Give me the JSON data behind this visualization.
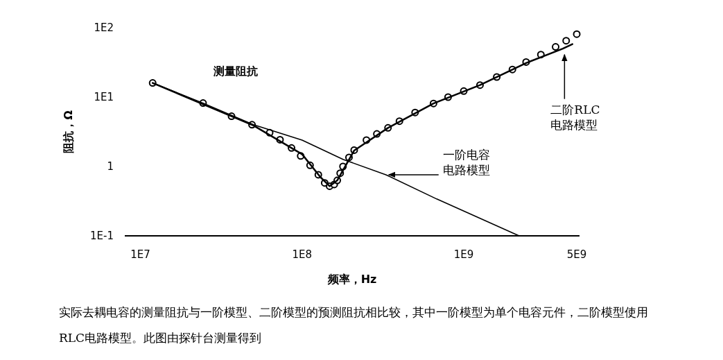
{
  "chart_data": {
    "type": "line",
    "xlabel": "频率，Hz",
    "ylabel": "阻抗，Ω",
    "log": "xy",
    "grid": false,
    "xlim": [
      8000000,
      5200000000
    ],
    "ylim": [
      0.1,
      100
    ],
    "xticks": [
      {
        "value": 10000000,
        "label": "1E7"
      },
      {
        "value": 100000000,
        "label": "1E8"
      },
      {
        "value": 1000000000,
        "label": "1E9"
      },
      {
        "value": 5000000000,
        "label": "5E9"
      }
    ],
    "yticks": [
      {
        "value": 0.1,
        "label": "1E-1"
      },
      1,
      {
        "value": 10,
        "label": "1E1"
      },
      {
        "value": 100,
        "label": "1E2"
      }
    ],
    "series": [
      {
        "type": "scatter",
        "marker": "circle",
        "color": "#000000",
        "x": [
          11900000,
          24400000,
          36600000,
          49000000,
          63000000,
          73000000,
          86000000,
          98000000,
          112000000,
          126000000,
          138000000,
          148000000,
          158000000,
          165000000,
          172000000,
          179000000,
          195000000,
          210000000,
          250000000,
          290000000,
          340000000,
          400000000,
          500000000,
          650000000,
          800000000,
          1000000000,
          1260000000,
          1600000000,
          2000000000,
          2430000000,
          3000000000,
          3700000000,
          4300000000,
          5000000000
        ],
        "values": [
          16,
          8.2,
          5.3,
          4.0,
          3.07,
          2.43,
          1.85,
          1.42,
          1.04,
          0.76,
          0.58,
          0.52,
          0.55,
          0.63,
          0.8,
          1.0,
          1.35,
          1.72,
          2.4,
          2.95,
          3.6,
          4.5,
          6.0,
          8.1,
          10,
          12.2,
          14.9,
          19.5,
          25,
          32,
          41,
          53,
          65,
          81
        ]
      },
      {
        "color": "#000000",
        "x": [
          11900000,
          24400000,
          50000000,
          100000000,
          180000000,
          330000000,
          680000000,
          2200000000
        ],
        "values": [
          16,
          8.2,
          4.0,
          2.4,
          1.26,
          0.76,
          0.34,
          0.1
        ]
      },
      {
        "color": "#000000",
        "x": [
          11900000,
          50000000,
          100000000,
          130000000,
          148000000,
          165000000,
          210000000,
          340000000,
          650000000,
          1260000000,
          2430000000,
          4100000000,
          4700000000
        ],
        "values": [
          16,
          3.9,
          1.5,
          0.7,
          0.52,
          0.63,
          1.7,
          3.6,
          8.1,
          14.9,
          31,
          50,
          58
        ]
      }
    ],
    "annotations": [
      "测量阻抗",
      {
        "text": "一阶电容电路模型",
        "x": 330000000,
        "y": 0.76
      },
      {
        "text": "二阶RLC电路模型",
        "x": 4200000000,
        "y": 45
      },
      "实际去耦电容的测量阻抗与一阶模型、二阶模型的预测阻抗相比较，其中一阶模型为单个电容元件，二阶模型使用RLC电路模型。此图由探针台测量得到"
    ]
  }
}
